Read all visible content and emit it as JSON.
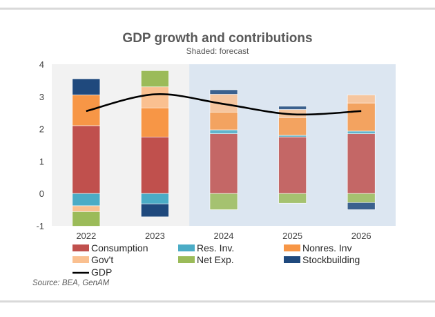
{
  "chart_data": {
    "type": "bar",
    "stacked": true,
    "title": "GDP growth and contributions",
    "subtitle": "Shaded: forecast",
    "categories": [
      "2022",
      "2023",
      "2024",
      "2025",
      "2026"
    ],
    "forecast_categories": [
      "2024",
      "2025",
      "2026"
    ],
    "ylim": [
      -1,
      4
    ],
    "yticks": [
      "4",
      "3",
      "2",
      "1",
      "0",
      "-1"
    ],
    "series": [
      {
        "name": "Consumption",
        "color": "#c0504d",
        "values": [
          2.1,
          1.75,
          1.85,
          1.75,
          1.85
        ]
      },
      {
        "name": "Res. Inv.",
        "color": "#4bacc6",
        "values": [
          -0.38,
          -0.32,
          0.12,
          0.05,
          0.08
        ]
      },
      {
        "name": "Nonres. Inv",
        "color": "#f79646",
        "values": [
          0.95,
          0.9,
          0.55,
          0.55,
          0.87
        ]
      },
      {
        "name": "Gov't",
        "color": "#fac090",
        "values": [
          -0.18,
          0.65,
          0.55,
          0.25,
          0.25
        ]
      },
      {
        "name": "Net Exp.",
        "color": "#9bbb59",
        "values": [
          -0.45,
          0.5,
          -0.5,
          -0.3,
          -0.28
        ]
      },
      {
        "name": "Stockbuilding",
        "color": "#1f497d",
        "values": [
          0.5,
          -0.4,
          0.14,
          0.1,
          -0.22
        ]
      }
    ],
    "line": {
      "name": "GDP",
      "color": "#000000",
      "values": [
        2.55,
        3.07,
        2.77,
        2.45,
        2.55
      ]
    },
    "legend": {
      "position": "bottom"
    },
    "grid": false
  },
  "source": "Source: BEA, GenAM"
}
